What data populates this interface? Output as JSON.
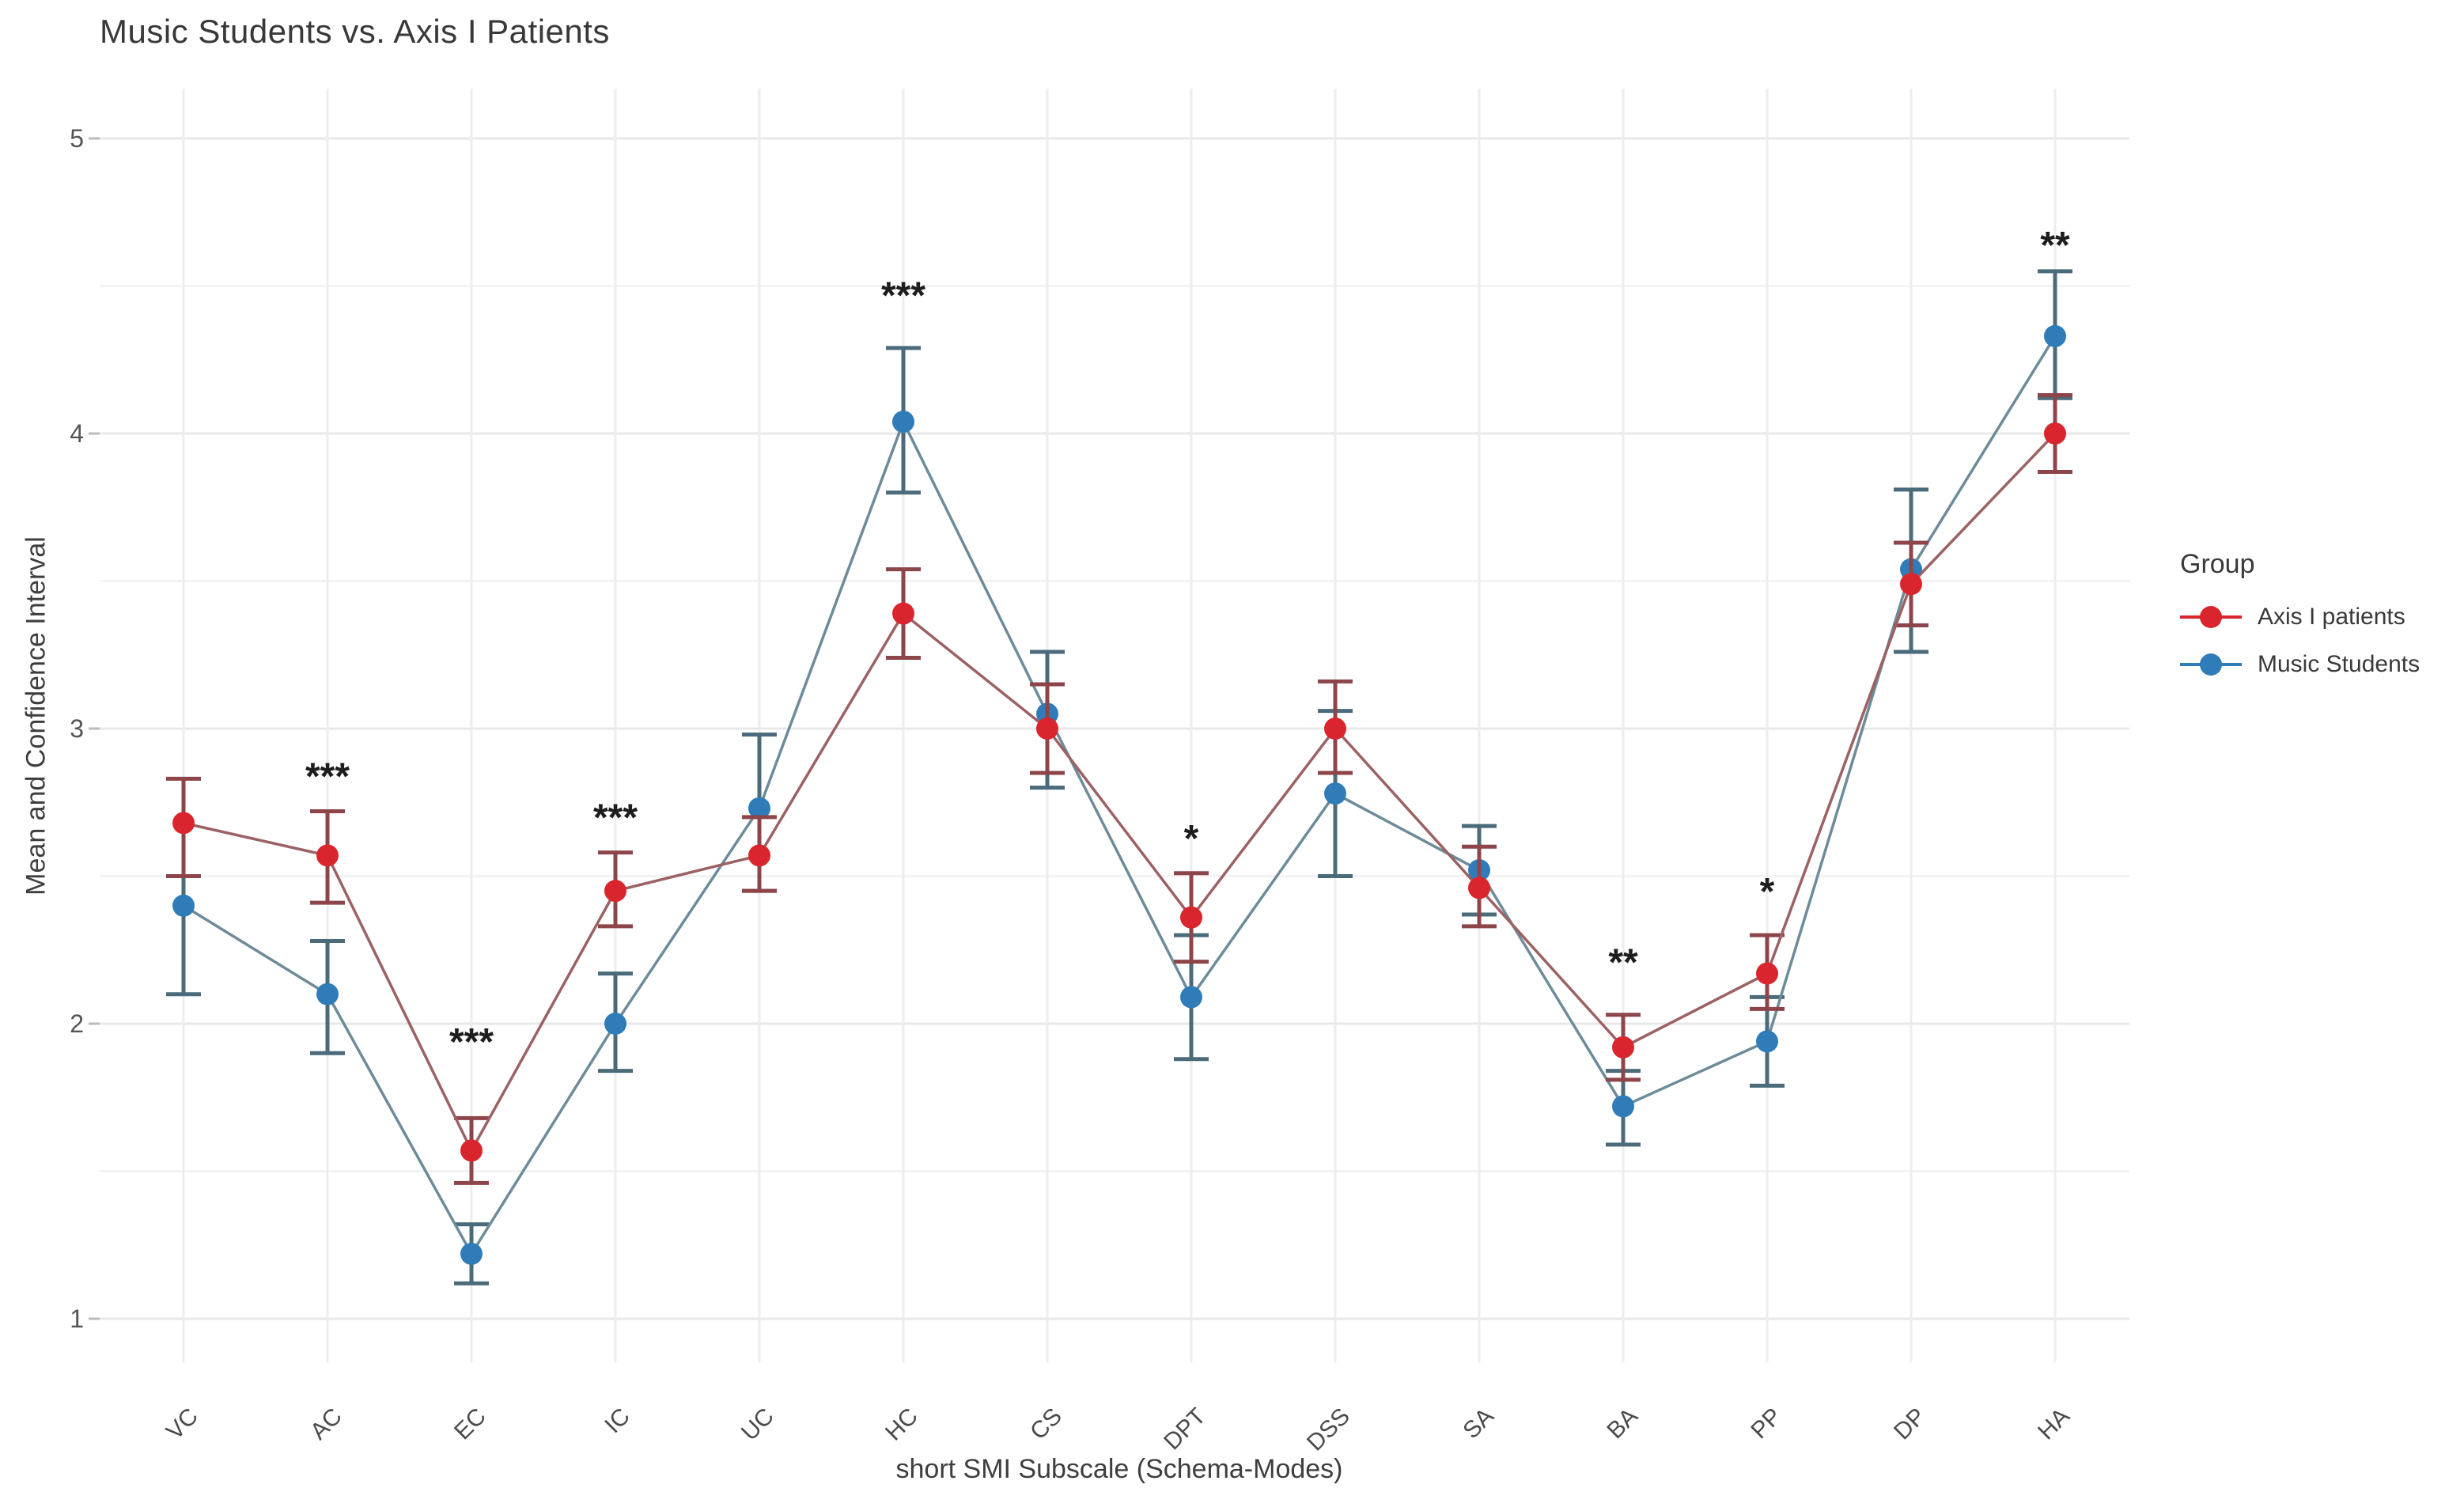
{
  "chart_data": {
    "type": "line",
    "title": "Music Students vs. Axis I Patients",
    "xlabel": "short SMI Subscale (Schema-Modes)",
    "ylabel": "Mean and Confidence Interval",
    "categories": [
      "VC",
      "AC",
      "EC",
      "IC",
      "UC",
      "HC",
      "CS",
      "DPT",
      "DSS",
      "SA",
      "BA",
      "PP",
      "DP",
      "HA"
    ],
    "yticks": [
      1,
      2,
      3,
      4,
      5
    ],
    "ylim": [
      0.93,
      5.17
    ],
    "grid": {
      "major": true,
      "minor": true,
      "minor_step": 0.5
    },
    "legend": {
      "title": "Group",
      "position": "right"
    },
    "error_bars": "95% confidence interval",
    "series": [
      {
        "name": "Music Students",
        "point_color": "#2f7cb9",
        "line_color": "#6d8b99",
        "whisker_color": "#4b6b7a",
        "means": [
          2.4,
          2.1,
          1.22,
          2.0,
          2.73,
          4.04,
          3.05,
          2.09,
          2.78,
          2.52,
          1.72,
          1.94,
          3.54,
          4.33
        ],
        "ci_low": [
          2.1,
          1.9,
          1.12,
          1.84,
          2.45,
          3.8,
          2.8,
          1.88,
          2.5,
          2.37,
          1.59,
          1.79,
          3.26,
          4.12
        ],
        "ci_high": [
          2.5,
          2.28,
          1.32,
          2.17,
          2.98,
          4.29,
          3.26,
          2.3,
          3.06,
          2.67,
          1.84,
          2.09,
          3.81,
          4.55
        ]
      },
      {
        "name": "Axis I patients",
        "point_color": "#d9262e",
        "line_color": "#9c6163",
        "whisker_color": "#8e4549",
        "means": [
          2.68,
          2.57,
          1.57,
          2.45,
          2.57,
          3.39,
          3.0,
          2.36,
          3.0,
          2.46,
          1.92,
          2.17,
          3.49,
          4.0
        ],
        "ci_low": [
          2.5,
          2.41,
          1.46,
          2.33,
          2.45,
          3.24,
          2.85,
          2.21,
          2.85,
          2.33,
          1.81,
          2.05,
          3.35,
          3.87
        ],
        "ci_high": [
          2.83,
          2.72,
          1.68,
          2.58,
          2.7,
          3.54,
          3.15,
          2.51,
          3.16,
          2.6,
          2.03,
          2.3,
          3.63,
          4.13
        ]
      }
    ],
    "legend_order": [
      "Axis I patients",
      "Music Students"
    ],
    "annotations": [
      {
        "category": "AC",
        "text": "***",
        "y": 2.87
      },
      {
        "category": "EC",
        "text": "***",
        "y": 1.97
      },
      {
        "category": "IC",
        "text": "***",
        "y": 2.73
      },
      {
        "category": "HC",
        "text": "***",
        "y": 4.5
      },
      {
        "category": "DPT",
        "text": "*",
        "y": 2.66
      },
      {
        "category": "BA",
        "text": "**",
        "y": 2.24
      },
      {
        "category": "PP",
        "text": "*",
        "y": 2.48
      },
      {
        "category": "HA",
        "text": "**",
        "y": 4.67
      }
    ],
    "style": {
      "background": "#ffffff",
      "grid_major_color": "#e8e8e8",
      "grid_minor_color": "#f3f3f3",
      "tick_label_color": "#555555",
      "annotation_color": "#1d1d1d"
    }
  }
}
